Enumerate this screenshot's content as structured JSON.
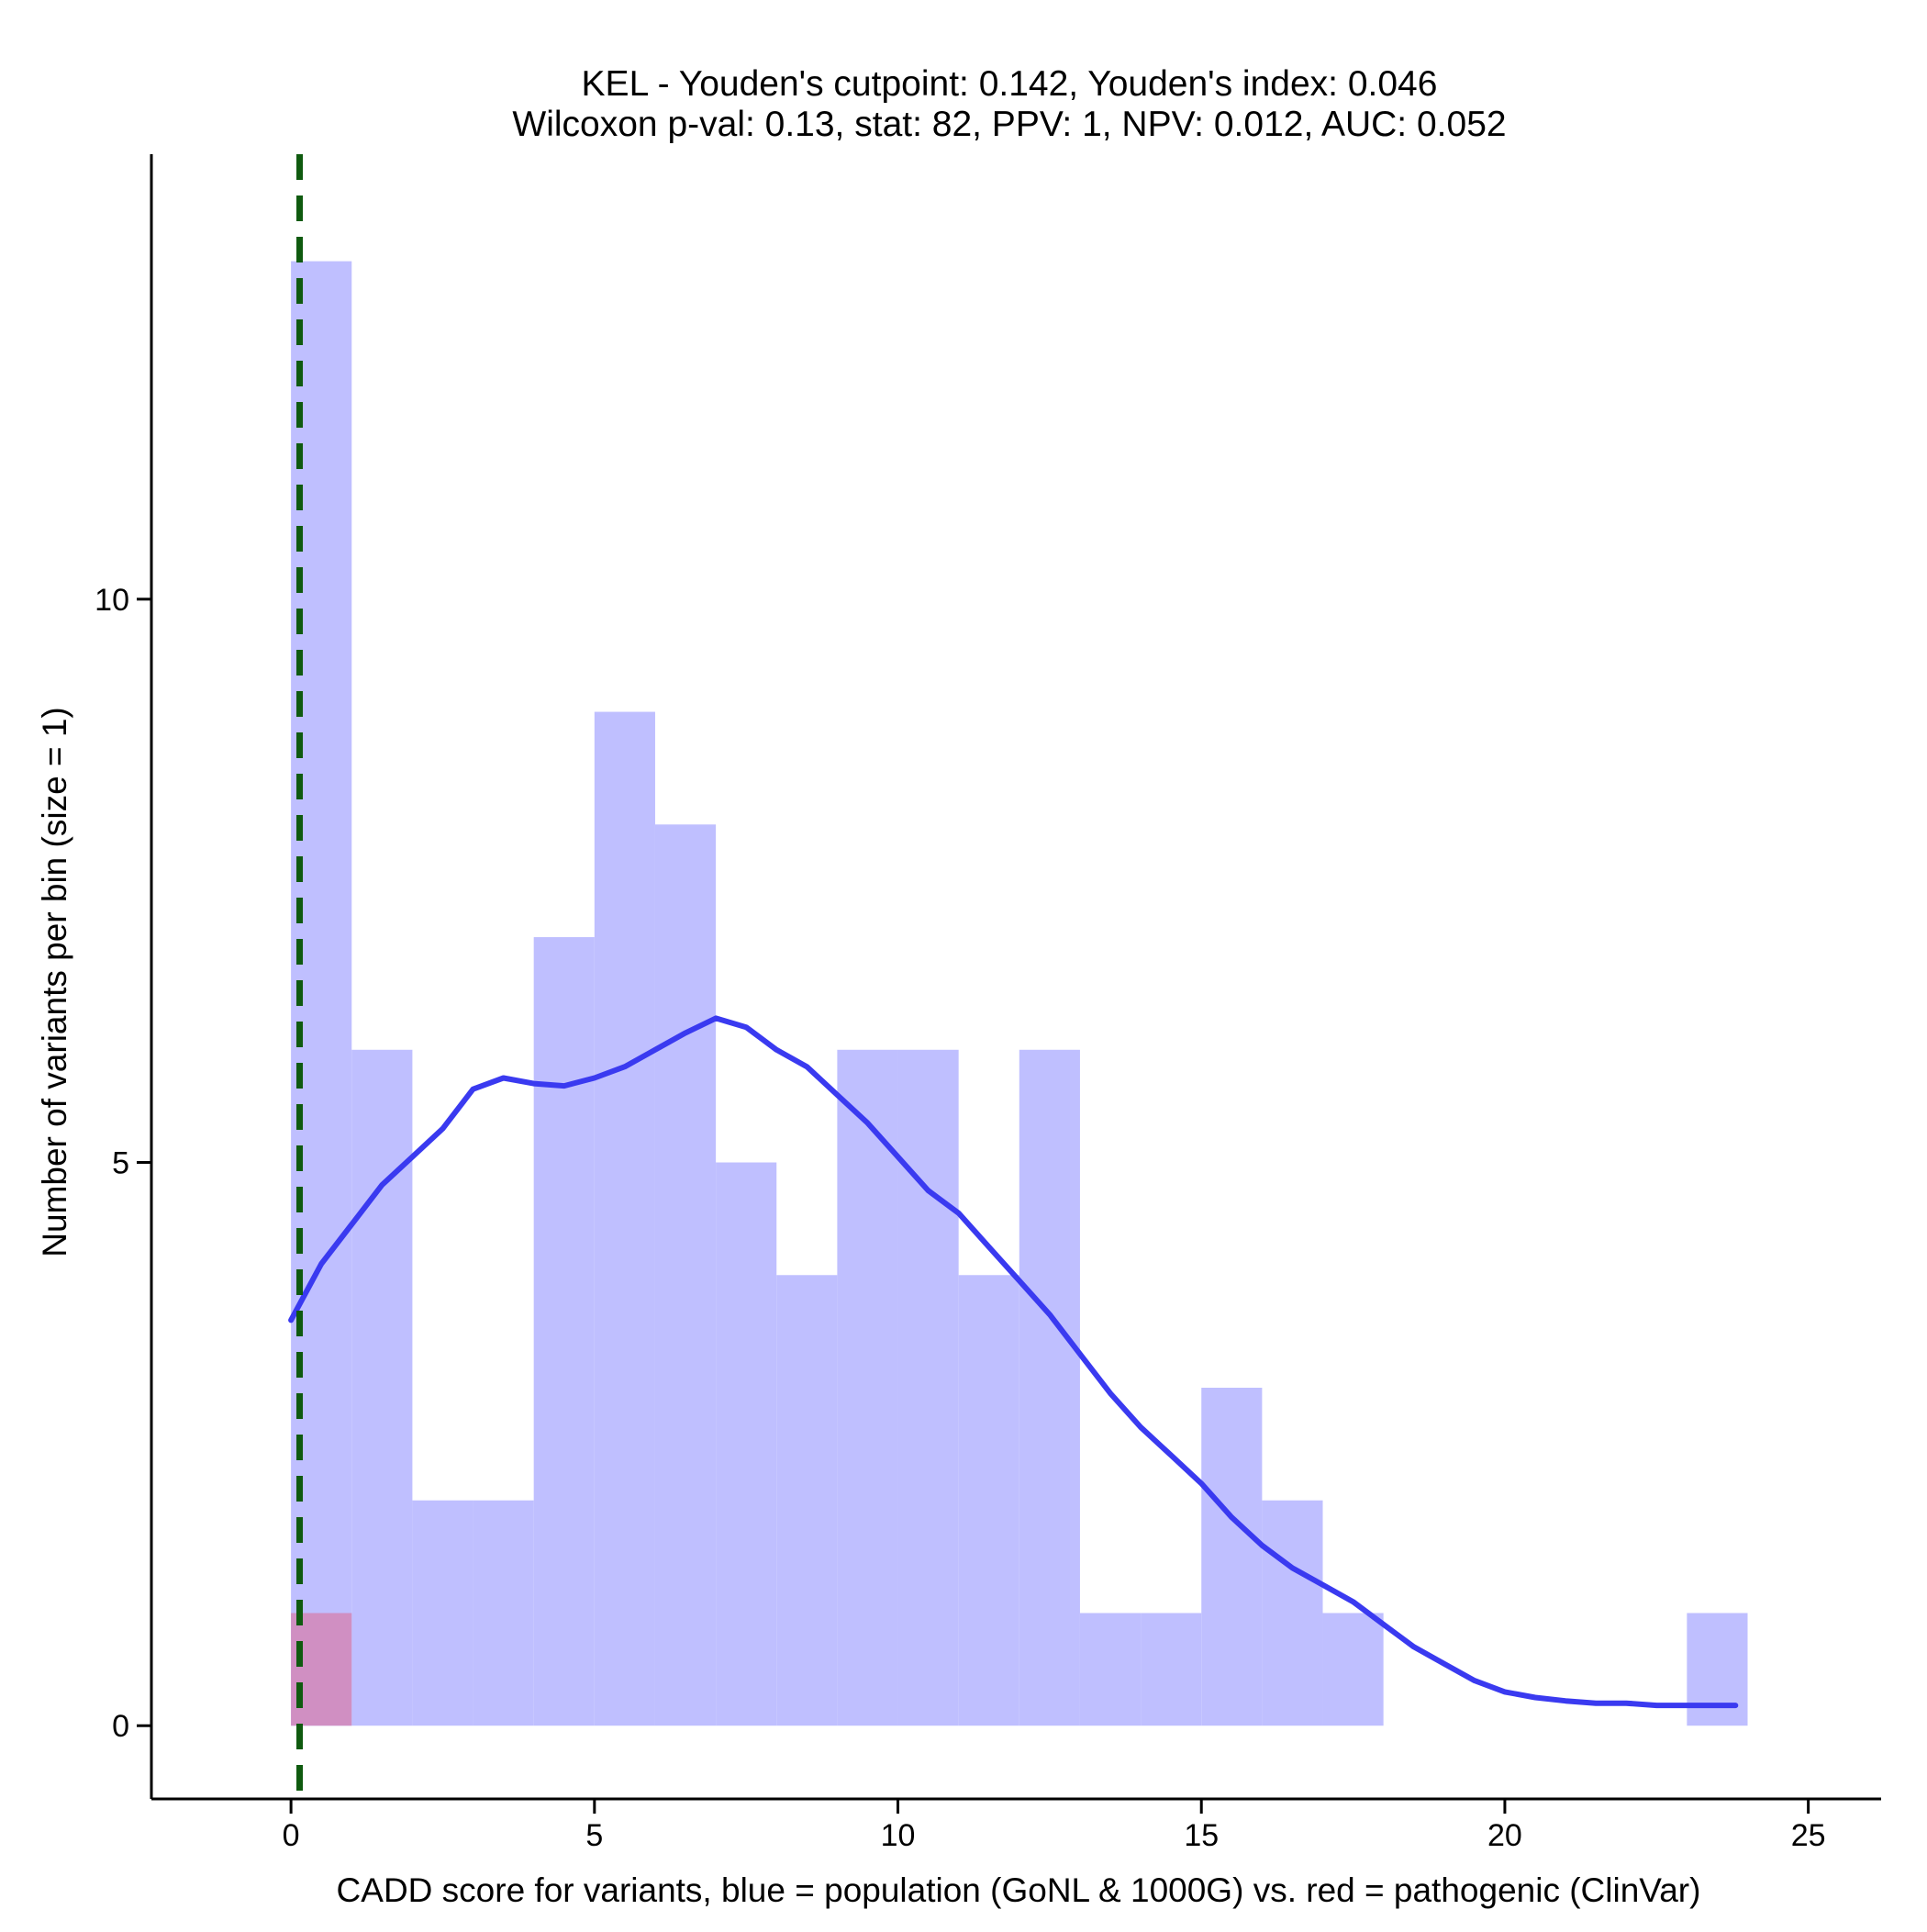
{
  "chart_data": {
    "type": "bar",
    "title": [
      "KEL - Youden's cutpoint: 0.142, Youden's index: 0.046",
      "Wilcoxon p-val: 0.13, stat: 82, PPV: 1, NPV: 0.012, AUC: 0.052"
    ],
    "xlabel": "CADD score for variants, blue = population (GoNL & 1000G) vs. red = pathogenic (ClinVar)",
    "ylabel": "Number of variants per bin (size = 1)",
    "xlim": [
      -2.3,
      26.2
    ],
    "ylim": [
      -0.65,
      13.95
    ],
    "x_ticks": [
      0,
      5,
      10,
      15,
      20,
      25
    ],
    "y_ticks": [
      0,
      5,
      10
    ],
    "bin_width": 1,
    "grid": false,
    "legend": "none",
    "series": [
      {
        "color": "#bfbfff",
        "bins": [
          {
            "x0": 0,
            "count": 13
          },
          {
            "x0": 1,
            "count": 6
          },
          {
            "x0": 2,
            "count": 2
          },
          {
            "x0": 3,
            "count": 2
          },
          {
            "x0": 4,
            "count": 7
          },
          {
            "x0": 5,
            "count": 9
          },
          {
            "x0": 6,
            "count": 8
          },
          {
            "x0": 7,
            "count": 5
          },
          {
            "x0": 8,
            "count": 4
          },
          {
            "x0": 9,
            "count": 6
          },
          {
            "x0": 10,
            "count": 6
          },
          {
            "x0": 11,
            "count": 4
          },
          {
            "x0": 12,
            "count": 6
          },
          {
            "x0": 13,
            "count": 1
          },
          {
            "x0": 14,
            "count": 1
          },
          {
            "x0": 15,
            "count": 3
          },
          {
            "x0": 16,
            "count": 2
          },
          {
            "x0": 17,
            "count": 1
          },
          {
            "x0": 23,
            "count": 1
          }
        ]
      },
      {
        "color": "#d08fc2",
        "bins": [
          {
            "x0": 0,
            "count": 1
          }
        ]
      }
    ],
    "density_curve": {
      "color": "#3a3af0",
      "x": [
        0,
        0.5,
        1,
        1.5,
        2,
        2.5,
        3,
        3.5,
        4,
        4.5,
        5,
        5.5,
        6,
        6.5,
        7,
        7.5,
        8,
        8.5,
        9,
        9.5,
        10,
        10.5,
        11,
        11.5,
        12,
        12.5,
        13,
        13.5,
        14,
        14.5,
        15,
        15.5,
        16,
        16.5,
        17,
        17.5,
        18,
        18.5,
        19,
        19.5,
        20,
        20.5,
        21,
        21.5,
        22,
        22.5,
        23,
        23.5,
        23.8
      ],
      "y": [
        3.6,
        4.1,
        4.45,
        4.8,
        5.05,
        5.3,
        5.65,
        5.75,
        5.7,
        5.68,
        5.75,
        5.85,
        6.0,
        6.15,
        6.28,
        6.2,
        6.0,
        5.85,
        5.6,
        5.35,
        5.05,
        4.75,
        4.55,
        4.25,
        3.95,
        3.65,
        3.3,
        2.95,
        2.65,
        2.4,
        2.15,
        1.85,
        1.6,
        1.4,
        1.25,
        1.1,
        0.9,
        0.7,
        0.55,
        0.4,
        0.3,
        0.25,
        0.22,
        0.2,
        0.2,
        0.18,
        0.18,
        0.18,
        0.18
      ]
    },
    "cutpoint_line": {
      "x": 0.142,
      "color": "#0f5a0f",
      "style": "dashed"
    }
  }
}
